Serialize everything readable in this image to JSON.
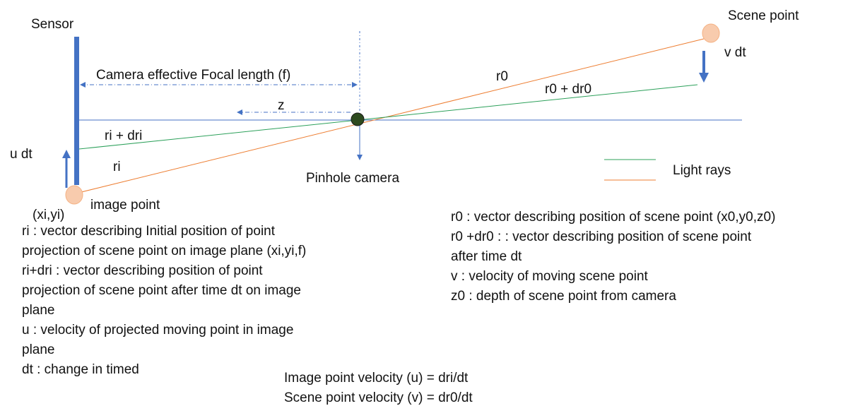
{
  "labels": {
    "sensor": "Sensor",
    "scene_point": "Scene point",
    "v_dt": "v dt",
    "focal_length": "Camera effective Focal length (f)",
    "r0": "r0",
    "r0_dr0": "r0 + dr0",
    "z": "z",
    "ri_dri": "ri + dri",
    "ri": "ri",
    "u_dt": "u dt",
    "pinhole_camera": "Pinhole camera",
    "light_rays": "Light rays",
    "image_point": "image point",
    "xi_yi": "(xi,yi)"
  },
  "left_notes": [
    "ri : vector describing Initial position of point",
    "projection of scene point on image plane (xi,yi,f)",
    "ri+dri : vector describing position of point",
    "projection of scene point after time dt on image",
    "plane",
    "u : velocity of projected moving point in image",
    "plane",
    "dt : change in timed"
  ],
  "right_notes": [
    "r0 : vector describing position of scene point  (x0,y0,z0)",
    "r0 +dr0 : : vector describing position of scene point",
    "after time dt",
    "v  : velocity of moving scene point",
    "z0 : depth of scene point from camera"
  ],
  "formulas": [
    "Image point velocity  (u) = dri/dt",
    "Scene point velocity (v) = dr0/dt"
  ],
  "colors": {
    "sensor": "#4472c4",
    "axis": "#4472c4",
    "orange_ray": "#ed7d31",
    "green_ray": "#2ca05a",
    "point_fill": "#f8cbad",
    "point_stroke": "#f4b183",
    "pinhole_fill": "#2d4a1e"
  }
}
